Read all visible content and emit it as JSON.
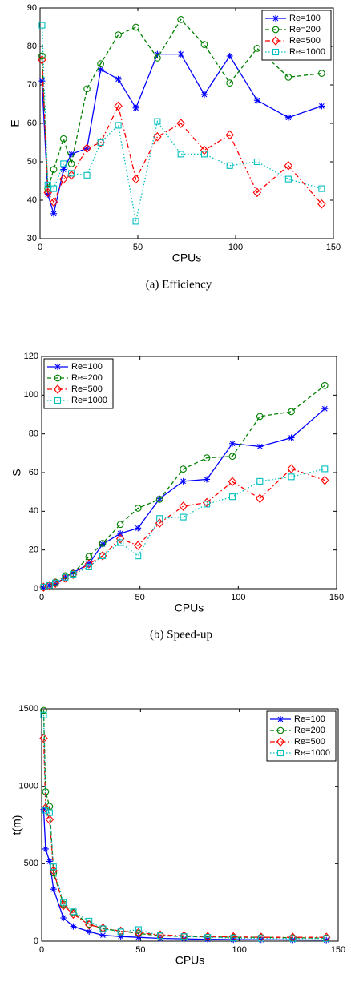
{
  "chart_data": [
    {
      "type": "line",
      "caption": "(a)  Efficiency",
      "xlabel": "CPUs",
      "ylabel": "E",
      "x": [
        1,
        4,
        7,
        12,
        16,
        24,
        31,
        40,
        49,
        60,
        72,
        84,
        97,
        111,
        127,
        144
      ],
      "xlim": [
        0,
        150
      ],
      "xticks": [
        0,
        50,
        100,
        150
      ],
      "ylim": [
        30,
        90
      ],
      "yticks": [
        30,
        40,
        50,
        60,
        70,
        80,
        90
      ],
      "legend": "upper right",
      "grid": false,
      "series": [
        {
          "name": "Re=100",
          "color": "#0000ff",
          "marker": "star",
          "linestyle": "solid",
          "values": [
            71,
            41.5,
            36.5,
            48,
            52,
            53.5,
            74,
            71.5,
            64,
            78,
            78,
            67.5,
            77.5,
            66,
            61.5,
            64.5
          ]
        },
        {
          "name": "Re=200",
          "color": "#008000",
          "marker": "circle",
          "linestyle": "dashed",
          "values": [
            77.5,
            43,
            48,
            56,
            49.5,
            69,
            75.5,
            83,
            85,
            77,
            87,
            80.5,
            70.5,
            79.5,
            72,
            73
          ]
        },
        {
          "name": "Re=500",
          "color": "#ff0000",
          "marker": "diamond",
          "linestyle": "dashdot",
          "values": [
            76.5,
            42,
            39.5,
            45.5,
            46.5,
            53.5,
            55,
            64.5,
            45.5,
            56.5,
            60,
            53,
            57,
            42,
            49,
            39
          ]
        },
        {
          "name": "Re=1000",
          "color": "#00bfbf",
          "marker": "square",
          "linestyle": "dotted",
          "values": [
            85.5,
            44,
            43,
            49.5,
            47,
            46.5,
            55,
            59.5,
            34.5,
            60.5,
            52,
            52,
            49,
            50,
            45.5,
            43
          ]
        }
      ]
    },
    {
      "type": "line",
      "caption": "(b)  Speed-up",
      "xlabel": "CPUs",
      "ylabel": "S",
      "x": [
        1,
        4,
        7,
        12,
        16,
        24,
        31,
        40,
        49,
        60,
        72,
        84,
        97,
        111,
        127,
        144
      ],
      "xlim": [
        0,
        150
      ],
      "xticks": [
        0,
        50,
        100,
        150
      ],
      "ylim": [
        0,
        120
      ],
      "yticks": [
        0,
        20,
        40,
        60,
        80,
        100,
        120
      ],
      "legend": "upper left",
      "grid": false,
      "series": [
        {
          "name": "Re=100",
          "color": "#0000ff",
          "marker": "star",
          "linestyle": "solid",
          "values": [
            0.7,
            1.7,
            2.5,
            5.8,
            8.3,
            12.8,
            23,
            28.5,
            31.3,
            46.5,
            55.5,
            56.5,
            75,
            73.5,
            78,
            93
          ]
        },
        {
          "name": "Re=200",
          "color": "#008000",
          "marker": "circle",
          "linestyle": "dashed",
          "values": [
            0.8,
            1.7,
            3.4,
            6.7,
            7.9,
            16.6,
            23.4,
            33.2,
            41.6,
            46.2,
            61.8,
            67.6,
            68.4,
            89,
            91.5,
            105
          ]
        },
        {
          "name": "Re=500",
          "color": "#ff0000",
          "marker": "diamond",
          "linestyle": "dashdot",
          "values": [
            0.8,
            1.7,
            2.8,
            5.5,
            7.4,
            12.8,
            17,
            25.8,
            22.3,
            33.9,
            42.6,
            44.5,
            55.3,
            46.6,
            62,
            56
          ]
        },
        {
          "name": "Re=1000",
          "color": "#00bfbf",
          "marker": "square",
          "linestyle": "dotted",
          "values": [
            0.9,
            1.8,
            3,
            5.9,
            7.5,
            11.2,
            17,
            23.8,
            16.9,
            36.3,
            37,
            43.7,
            47.5,
            55.5,
            57.8,
            61.9
          ]
        }
      ]
    },
    {
      "type": "line",
      "xlabel": "CPUs",
      "ylabel": "t(m)",
      "x": [
        1,
        2,
        4,
        6,
        11,
        16,
        24,
        31,
        40,
        49,
        60,
        72,
        84,
        97,
        111,
        127,
        144
      ],
      "xlim": [
        0,
        150
      ],
      "xticks": [
        0,
        50,
        100,
        150
      ],
      "ylim": [
        0,
        1500
      ],
      "yticks": [
        0,
        500,
        1000,
        1500
      ],
      "legend": "upper right",
      "grid": false,
      "series": [
        {
          "name": "Re=100",
          "color": "#0000ff",
          "marker": "star",
          "linestyle": "solid",
          "values": [
            850,
            595,
            515,
            335,
            150,
            95,
            62,
            38,
            30,
            25,
            18,
            15,
            12,
            10,
            9,
            8,
            7
          ]
        },
        {
          "name": "Re=200",
          "color": "#008000",
          "marker": "circle",
          "linestyle": "dashed",
          "values": [
            1490,
            965,
            870,
            440,
            240,
            185,
            110,
            80,
            65,
            50,
            35,
            30,
            28,
            25,
            25,
            22,
            20
          ]
        },
        {
          "name": "Re=500",
          "color": "#ff0000",
          "marker": "diamond",
          "linestyle": "dashdot",
          "values": [
            1310,
            860,
            785,
            455,
            230,
            175,
            105,
            85,
            65,
            55,
            40,
            35,
            30,
            28,
            25,
            25,
            25
          ]
        },
        {
          "name": "Re=1000",
          "color": "#00bfbf",
          "marker": "square",
          "linestyle": "dotted",
          "values": [
            1460,
            845,
            830,
            480,
            250,
            190,
            130,
            80,
            60,
            75,
            35,
            30,
            25,
            20,
            18,
            17,
            17
          ]
        }
      ]
    }
  ]
}
